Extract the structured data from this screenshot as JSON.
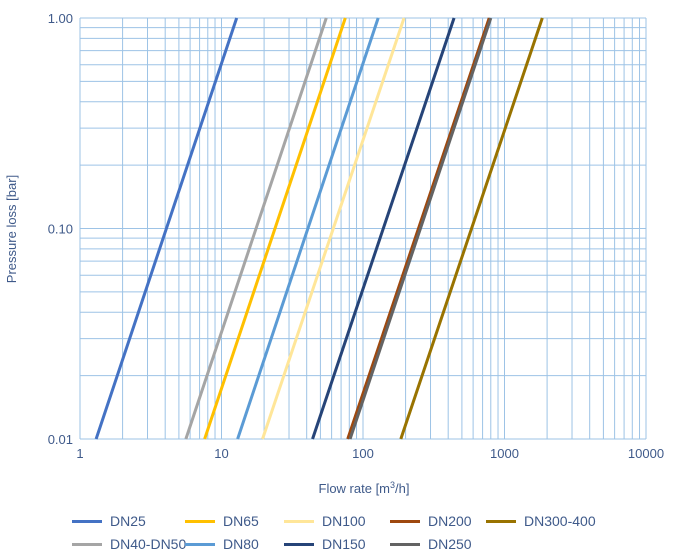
{
  "chart_data": {
    "type": "line",
    "title": "",
    "xlabel": "Flow rate [m",
    "xlabel_sup": "3",
    "xlabel_suffix": "/h]",
    "ylabel": "Pressure loss [bar]",
    "xscale": "log",
    "yscale": "log",
    "xlim": [
      1,
      10000
    ],
    "ylim": [
      0.01,
      1
    ],
    "xticks": [
      "1",
      "10",
      "100",
      "1000",
      "10000"
    ],
    "yticks": [
      "0.01",
      "0.10",
      "1.00"
    ],
    "grid": true,
    "legend_position": "bottom",
    "series": [
      {
        "name": "DN25",
        "color": "#4472c4",
        "x": [
          1.3,
          12.8
        ],
        "y": [
          0.01,
          1
        ]
      },
      {
        "name": "DN40-DN50",
        "color": "#a5a5a5",
        "x": [
          5.6,
          55
        ],
        "y": [
          0.01,
          1
        ]
      },
      {
        "name": "DN65",
        "color": "#ffc000",
        "x": [
          7.6,
          75
        ],
        "y": [
          0.01,
          1
        ]
      },
      {
        "name": "DN80",
        "color": "#5b9bd5",
        "x": [
          13,
          128
        ],
        "y": [
          0.01,
          1
        ]
      },
      {
        "name": "DN100",
        "color": "#ffe699",
        "x": [
          19.5,
          195
        ],
        "y": [
          0.01,
          1
        ]
      },
      {
        "name": "DN150",
        "color": "#264478",
        "x": [
          44,
          440
        ],
        "y": [
          0.01,
          1
        ]
      },
      {
        "name": "DN200",
        "color": "#9e480e",
        "x": [
          78,
          780
        ],
        "y": [
          0.01,
          1
        ]
      },
      {
        "name": "DN250",
        "color": "#636363",
        "x": [
          81,
          800
        ],
        "y": [
          0.01,
          1
        ]
      },
      {
        "name": "DN300-400",
        "color": "#997300",
        "x": [
          185,
          1850
        ],
        "y": [
          0.01,
          1
        ]
      }
    ]
  },
  "legend": {
    "items": [
      {
        "label": "DN25",
        "color": "#4472c4"
      },
      {
        "label": "DN65",
        "color": "#ffc000"
      },
      {
        "label": "DN100",
        "color": "#ffe699"
      },
      {
        "label": "DN200",
        "color": "#9e480e"
      },
      {
        "label": "DN300-400",
        "color": "#997300"
      },
      {
        "label": "DN40-DN50",
        "color": "#a5a5a5"
      },
      {
        "label": "DN80",
        "color": "#5b9bd5"
      },
      {
        "label": "DN150",
        "color": "#264478"
      },
      {
        "label": "DN250",
        "color": "#636363"
      }
    ]
  }
}
